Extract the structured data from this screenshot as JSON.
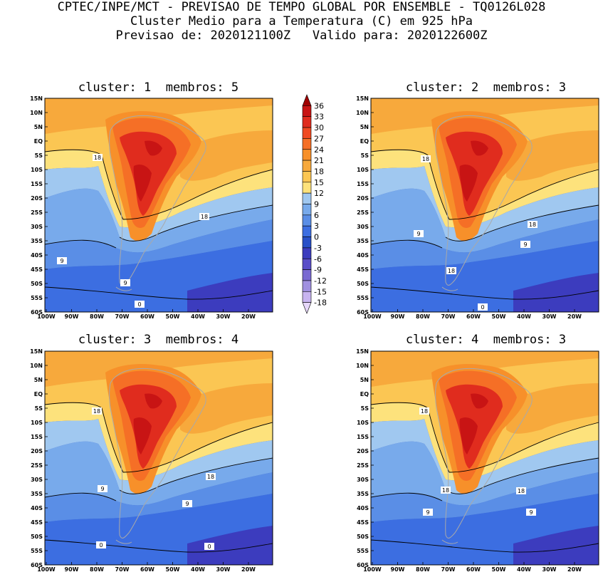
{
  "header": {
    "line1": "CPTEC/INPE/MCT - PREVISAO DE TEMPO GLOBAL POR ENSEMBLE - TQ0126L028",
    "line2": "Cluster Medio para a Temperatura (C) em 925 hPa",
    "line3": "Previsao de: 2020121100Z   Valido para: 2020122600Z"
  },
  "panels": [
    {
      "title": "cluster: 1  membros: 5",
      "labels": [
        "18",
        "18",
        "9",
        "9",
        "0"
      ]
    },
    {
      "title": "cluster: 2  membros: 3",
      "labels": [
        "18",
        "18",
        "9",
        "9",
        "18",
        "0"
      ]
    },
    {
      "title": "cluster: 3  membros: 4",
      "labels": [
        "18",
        "18",
        "9",
        "9",
        "0",
        "0"
      ]
    },
    {
      "title": "cluster: 4  membros: 3",
      "labels": [
        "18",
        "18",
        "18",
        "9",
        "9"
      ]
    }
  ],
  "axes": {
    "lat": [
      "15N",
      "10N",
      "5N",
      "EQ",
      "5S",
      "10S",
      "15S",
      "20S",
      "25S",
      "30S",
      "35S",
      "40S",
      "45S",
      "50S",
      "55S",
      "60S"
    ],
    "lon": [
      "100W",
      "90W",
      "80W",
      "70W",
      "60W",
      "50W",
      "40W",
      "30W",
      "20W"
    ]
  },
  "colorbar": {
    "levels": [
      "36",
      "33",
      "30",
      "27",
      "24",
      "21",
      "18",
      "15",
      "12",
      "9",
      "6",
      "3",
      "0",
      "-3",
      "-6",
      "-9",
      "-12",
      "-15",
      "-18"
    ],
    "colors": [
      "#a00000",
      "#c81414",
      "#e02c1e",
      "#f04a22",
      "#f56f26",
      "#f7902a",
      "#f7a93c",
      "#fbc653",
      "#fde27c",
      "#a0c8f0",
      "#78aaeb",
      "#5a8ee6",
      "#3c6ee1",
      "#2850c8",
      "#3c3cbe",
      "#5a4ec8",
      "#7a6ad2",
      "#a090e0",
      "#c8b4f0",
      "#e6d7fa"
    ]
  }
}
